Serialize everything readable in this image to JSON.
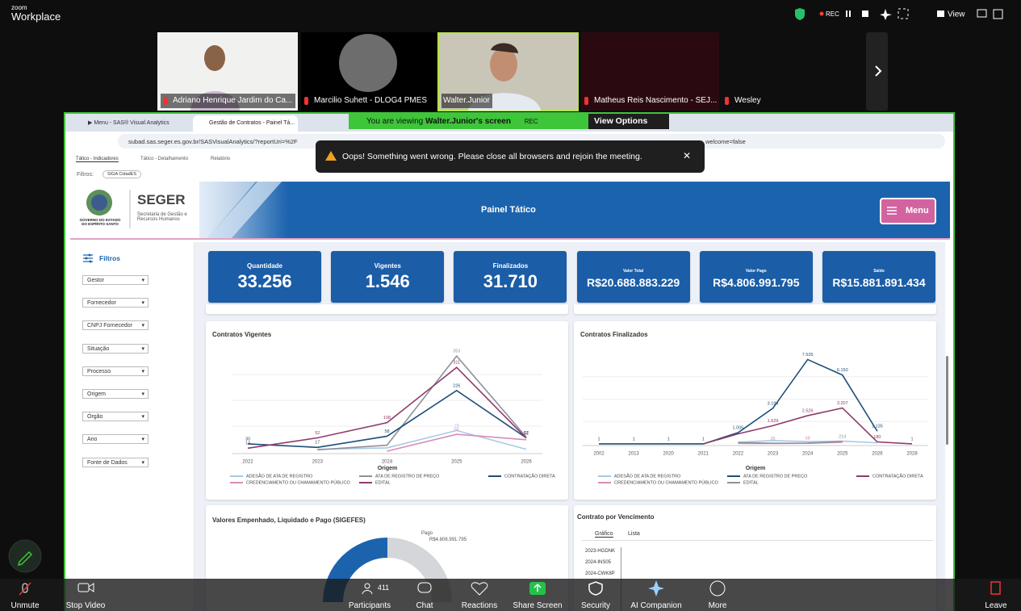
{
  "zoom": {
    "brand_top": "zoom",
    "brand": "Workplace",
    "rec": "REC",
    "view": "View"
  },
  "participants": [
    {
      "name": "Adriano Henrique Jardim do Ca..."
    },
    {
      "name": "Marcilio Suhett - DLOG4 PMES"
    },
    {
      "name": "Walter.Junior"
    },
    {
      "name": "Matheus Reis Nascimento - SEJ..."
    },
    {
      "name": "Wesley"
    }
  ],
  "share_banner": {
    "text": "You are viewing",
    "owner": "Walter.Junior's screen",
    "rec": "REC",
    "options": "View Options"
  },
  "browser": {
    "tabs": [
      "▶ Menu - SAS® Visual Analytics",
      "Gestão de Contratos - Painel Tá..."
    ],
    "url": "subad.sas.seger.es.gov.br/SASVisualAnalytics/?reportUri=%2F",
    "url_tail": "welcome=false"
  },
  "toast": "Oops! Something went wrong. Please close all browsers and rejoin the meeting.",
  "report": {
    "tabs": [
      "Tático - Indicadores",
      "Tático - Detalhamento",
      "Relatório"
    ],
    "filter_label": "Filtros:",
    "filter_chip": "SIGA CidadES",
    "logo": {
      "state": "GOVERNO DO ESTADO DO ESPÍRITO SANTO",
      "name": "SEGER",
      "sub": "Secretaria de Gestão e Recursos Humanos"
    },
    "title": "Painel Tático",
    "menu": "Menu",
    "sidebar": {
      "title": "Filtros",
      "items": [
        "Gestor",
        "Fornecedor",
        "CNPJ Fornecedor",
        "Situação",
        "Processo",
        "Origem",
        "Órgão",
        "Ano",
        "Fonte de Dados"
      ]
    },
    "kpis": [
      {
        "label": "Quantidade",
        "value": "33.256"
      },
      {
        "label": "Vigentes",
        "value": "1.546"
      },
      {
        "label": "Finalizados",
        "value": "31.710"
      },
      {
        "label": "Valor Total",
        "value": "R$20.688.883.229"
      },
      {
        "label": "Valor Pago",
        "value": "R$4.806.991.795"
      },
      {
        "label": "Saldo",
        "value": "R$15.881.891.434"
      }
    ],
    "charts": [
      {
        "type": "line",
        "title": "Contratos Vigentes",
        "legend_title": "Origem",
        "categories": [
          "2022",
          "2023",
          "2024",
          "2025",
          "2026"
        ],
        "ylim": [
          0,
          380
        ],
        "series": [
          {
            "name": "ADESÃO DE ATA DE REGISTRO",
            "color": "#a9c9e2",
            "values": [
              null,
              10,
              15,
              79,
              10
            ],
            "value_labels": [
              null,
              null,
              null,
              "79",
              null
            ]
          },
          {
            "name": "ATA DE REGISTRO DE PREÇO",
            "color": "#8d919b",
            "values": [
              null,
              8,
              25,
              353,
              55
            ],
            "value_labels": [
              null,
              null,
              null,
              "353",
              null
            ]
          },
          {
            "name": "CONTRATAÇÃO DIRETA",
            "color": "#1f4e79",
            "values": [
              30,
              17,
              58,
              226,
              52
            ],
            "value_labels": [
              "30",
              "17",
              "58",
              "226",
              "52"
            ]
          },
          {
            "name": "CREDENCIAMENTO OU CHAMAMENTO PÚBLICO",
            "color": "#d98bb8",
            "values": [
              null,
              null,
              3,
              65,
              45
            ],
            "value_labels": [
              null,
              null,
              null,
              "65",
              null
            ]
          },
          {
            "name": "EDITAL",
            "color": "#8e3b6b",
            "values": [
              14,
              52,
              108,
              311,
              51
            ],
            "value_labels": [
              "14",
              "52",
              "108",
              "311",
              "51"
            ]
          }
        ]
      },
      {
        "type": "line",
        "title": "Contratos Finalizados",
        "legend_title": "Origem",
        "categories": [
          "2002",
          "2013",
          "2020",
          "2021",
          "2022",
          "2023",
          "2024",
          "2025",
          "2026",
          "2028"
        ],
        "ylim": [
          0,
          8000
        ],
        "series": [
          {
            "name": "ADESÃO DE ATA DE REGISTRO",
            "color": "#a9c9e2",
            "values": [
              null,
              null,
              null,
              null,
              150,
              300,
              200,
              250,
              100,
              null
            ],
            "value_labels": [
              null,
              null,
              null,
              null,
              null,
              null,
              null,
              null,
              null,
              null
            ]
          },
          {
            "name": "ATA DE REGISTRO DE PREÇO",
            "color": "#1f4e79",
            "values": [
              1,
              1,
              1,
              1,
              1005,
              3184,
              7535,
              6150,
              1135,
              null
            ],
            "value_labels": [
              "1",
              "1",
              "1",
              "1",
              "1.005",
              "3.184",
              "7.535",
              "6.150",
              "1.135",
              null
            ]
          },
          {
            "name": "CONTRATAÇÃO DIRETA",
            "color": "#8e3b6b",
            "values": [
              null,
              null,
              null,
              1,
              900,
              1629,
              2526,
              3207,
              180,
              1
            ],
            "value_labels": [
              null,
              null,
              null,
              null,
              null,
              "1.629",
              "2.526",
              "3.207",
              "180",
              "1"
            ]
          },
          {
            "name": "CREDENCIAMENTO OU CHAMAMENTO PÚBLICO",
            "color": "#d98bb8",
            "values": [
              null,
              null,
              null,
              null,
              50,
              36,
              58,
              150,
              null,
              null
            ],
            "value_labels": [
              null,
              null,
              null,
              null,
              null,
              "36",
              "58",
              null,
              null,
              null
            ]
          },
          {
            "name": "EDITAL",
            "color": "#8d919b",
            "values": [
              null,
              null,
              null,
              null,
              120,
              56,
              70,
              214,
              null,
              null
            ],
            "value_labels": [
              null,
              null,
              null,
              null,
              null,
              null,
              null,
              "214",
              null,
              null
            ]
          }
        ]
      }
    ],
    "donut": {
      "title": "Valores Empenhado, Liquidado e Pago (SIGEFES)",
      "label": "Pago",
      "value": "R$4.806.991.795"
    },
    "vencimento": {
      "title": "Contrato por Vencimento",
      "tabs": [
        "Gráfico",
        "Lista"
      ],
      "rows": [
        "2023-HGDNK",
        "2024-INS05",
        "2024-CWK8P"
      ]
    }
  },
  "toolbar": {
    "unmute": "Unmute",
    "video": "Stop Video",
    "participants": "Participants",
    "count": "411",
    "chat": "Chat",
    "reactions": "Reactions",
    "share": "Share Screen",
    "security": "Security",
    "ai": "AI Companion",
    "more": "More",
    "leave": "Leave"
  }
}
